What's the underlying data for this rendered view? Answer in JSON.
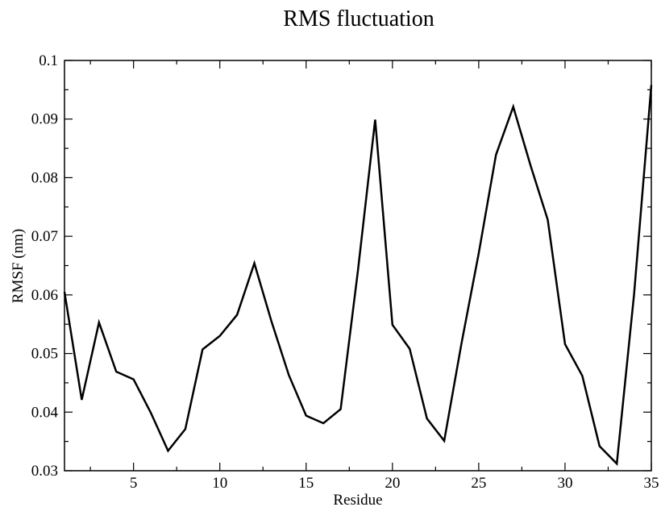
{
  "chart_data": {
    "type": "line",
    "title": "RMS fluctuation",
    "xlabel": "Residue",
    "ylabel": "RMSF (nm)",
    "xlim": [
      1,
      35
    ],
    "ylim": [
      0.03,
      0.1
    ],
    "x_ticks": [
      5,
      10,
      15,
      20,
      25,
      30,
      35
    ],
    "y_ticks": [
      0.03,
      0.04,
      0.05,
      0.06,
      0.07,
      0.08,
      0.09,
      0.1
    ],
    "x_tick_labels": [
      "5",
      "10",
      "15",
      "20",
      "25",
      "30",
      "35"
    ],
    "y_tick_labels": [
      "0.03",
      "0.04",
      "0.05",
      "0.06",
      "0.07",
      "0.08",
      "0.09",
      "0.1"
    ],
    "grid": false,
    "line_color": "#000000",
    "x": [
      1,
      2,
      3,
      4,
      5,
      6,
      7,
      8,
      9,
      10,
      11,
      12,
      13,
      14,
      15,
      16,
      17,
      18,
      19,
      20,
      21,
      22,
      23,
      24,
      25,
      26,
      27,
      28,
      29,
      30,
      31,
      32,
      33,
      34,
      35
    ],
    "y": [
      0.0605,
      0.0421,
      0.0553,
      0.0469,
      0.0456,
      0.0399,
      0.0334,
      0.0371,
      0.0507,
      0.053,
      0.0566,
      0.0654,
      0.0554,
      0.0463,
      0.0394,
      0.0381,
      0.0405,
      0.0641,
      0.0899,
      0.0549,
      0.0508,
      0.0389,
      0.0351,
      0.0517,
      0.0671,
      0.0839,
      0.0921,
      0.0821,
      0.0728,
      0.0516,
      0.0462,
      0.0342,
      0.0312,
      0.0601,
      0.0958
    ]
  }
}
